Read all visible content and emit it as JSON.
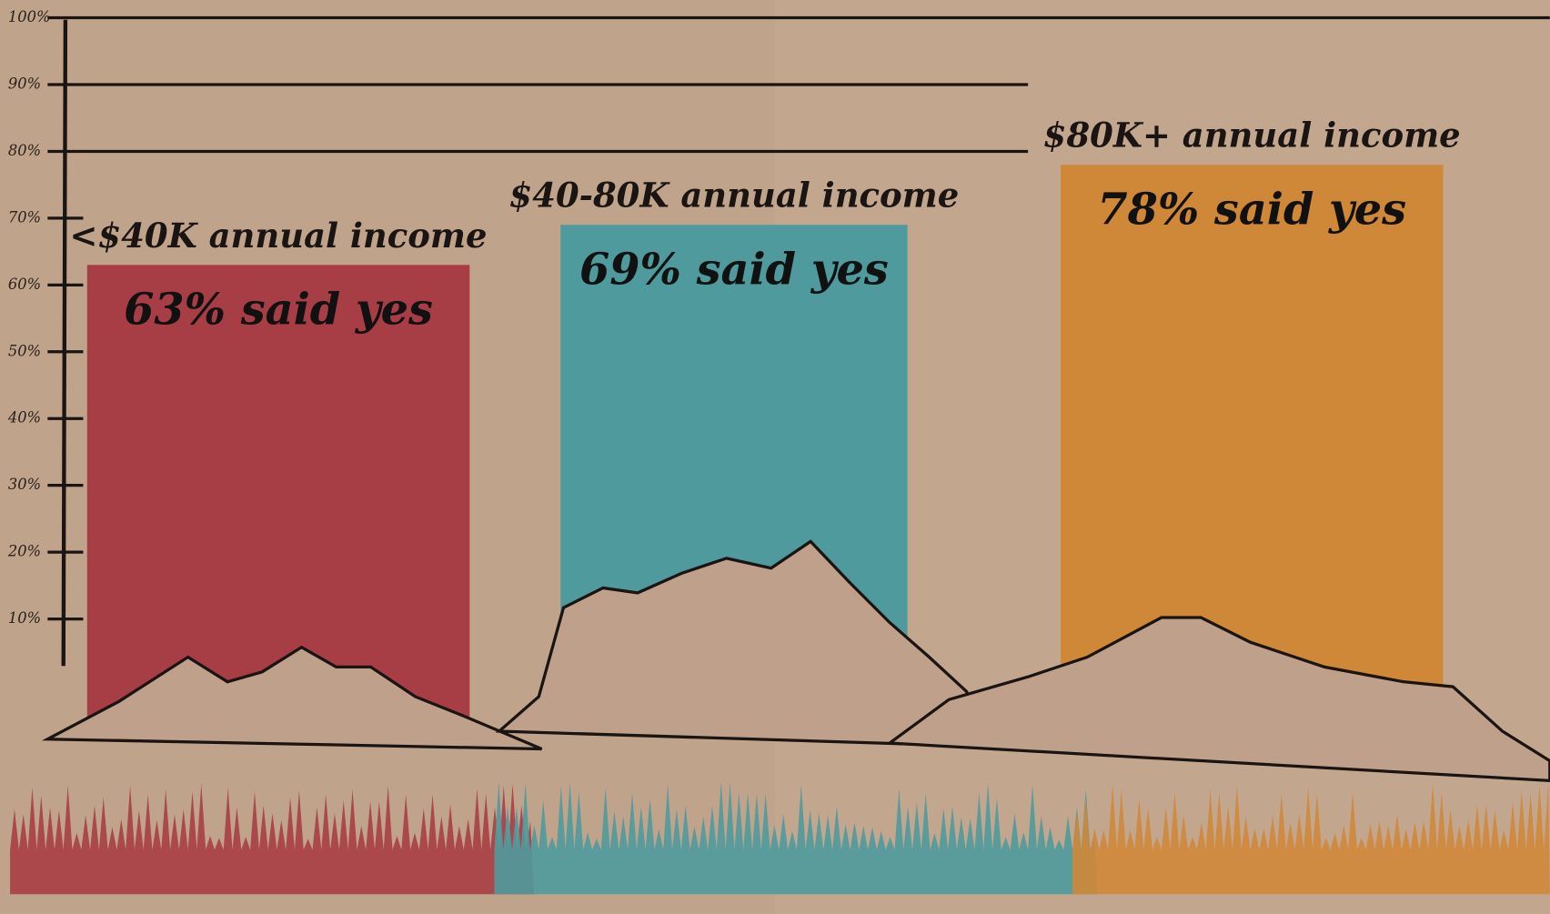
{
  "chart_data": {
    "type": "bar",
    "categories": [
      "<$40K annual income",
      "$40-80K annual income",
      "$80K+ annual income"
    ],
    "values": [
      63,
      69,
      78
    ],
    "value_labels": [
      "63% said yes",
      "69% said yes",
      "78% said yes"
    ],
    "colors": [
      "#a83e45",
      "#4f9a9c",
      "#cf8838"
    ],
    "ylim": [
      0,
      100
    ],
    "yticks": [
      {
        "value": 10,
        "label": "10%"
      },
      {
        "value": 20,
        "label": "20%"
      },
      {
        "value": 30,
        "label": "30%"
      },
      {
        "value": 40,
        "label": "40%"
      },
      {
        "value": 50,
        "label": "50%"
      },
      {
        "value": 60,
        "label": "60%"
      },
      {
        "value": 70,
        "label": "70%"
      },
      {
        "value": 80,
        "label": "80%"
      },
      {
        "value": 90,
        "label": "90%"
      },
      {
        "value": 100,
        "label": "100%"
      }
    ]
  }
}
